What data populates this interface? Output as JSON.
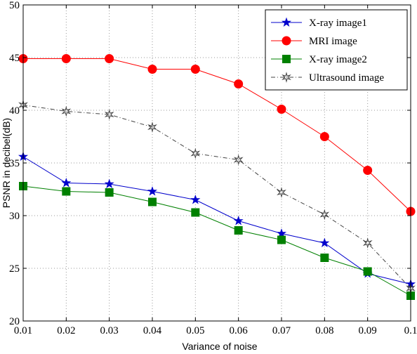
{
  "chart_data": {
    "type": "line",
    "xlabel": "Variance of noise",
    "ylabel": "PSNR in decibel(dB)",
    "xlim": [
      0.01,
      0.1
    ],
    "ylim": [
      20,
      50
    ],
    "x_ticks": [
      0.01,
      0.02,
      0.03,
      0.04,
      0.05,
      0.06,
      0.07,
      0.08,
      0.09,
      0.1
    ],
    "x_tick_labels": [
      "0.01",
      "0.02",
      "0.03",
      "0.04",
      "0.05",
      "0.06",
      "0.07",
      "0.08",
      "0.09",
      "0.1"
    ],
    "y_ticks": [
      20,
      25,
      30,
      35,
      40,
      45,
      50
    ],
    "y_tick_labels": [
      "20",
      "25",
      "30",
      "35",
      "40",
      "45",
      "50"
    ],
    "grid": "dotted",
    "legend_position": "top-right",
    "x": [
      0.01,
      0.02,
      0.03,
      0.04,
      0.05,
      0.06,
      0.07,
      0.08,
      0.09,
      0.1
    ],
    "series": [
      {
        "name": "X-ray image1",
        "color": "#0000cc",
        "marker": "star",
        "line_style": "solid",
        "values": [
          35.6,
          33.1,
          33.0,
          32.3,
          31.5,
          29.5,
          28.3,
          27.4,
          24.5,
          23.5
        ]
      },
      {
        "name": "MRI image",
        "color": "#ff0000",
        "marker": "circle",
        "line_style": "solid",
        "values": [
          44.9,
          44.9,
          44.9,
          43.9,
          43.9,
          42.5,
          40.1,
          37.5,
          34.3,
          30.4
        ]
      },
      {
        "name": "X-ray image2",
        "color": "#008000",
        "marker": "square",
        "line_style": "solid",
        "values": [
          32.8,
          32.3,
          32.2,
          31.3,
          30.3,
          28.6,
          27.7,
          26.0,
          24.7,
          22.4
        ]
      },
      {
        "name": "Ultrasound image",
        "color": "#444444",
        "marker": "hexagram",
        "line_style": "dashdot",
        "values": [
          40.5,
          39.9,
          39.6,
          38.4,
          35.9,
          35.3,
          32.2,
          30.1,
          27.4,
          23.1
        ]
      }
    ]
  }
}
